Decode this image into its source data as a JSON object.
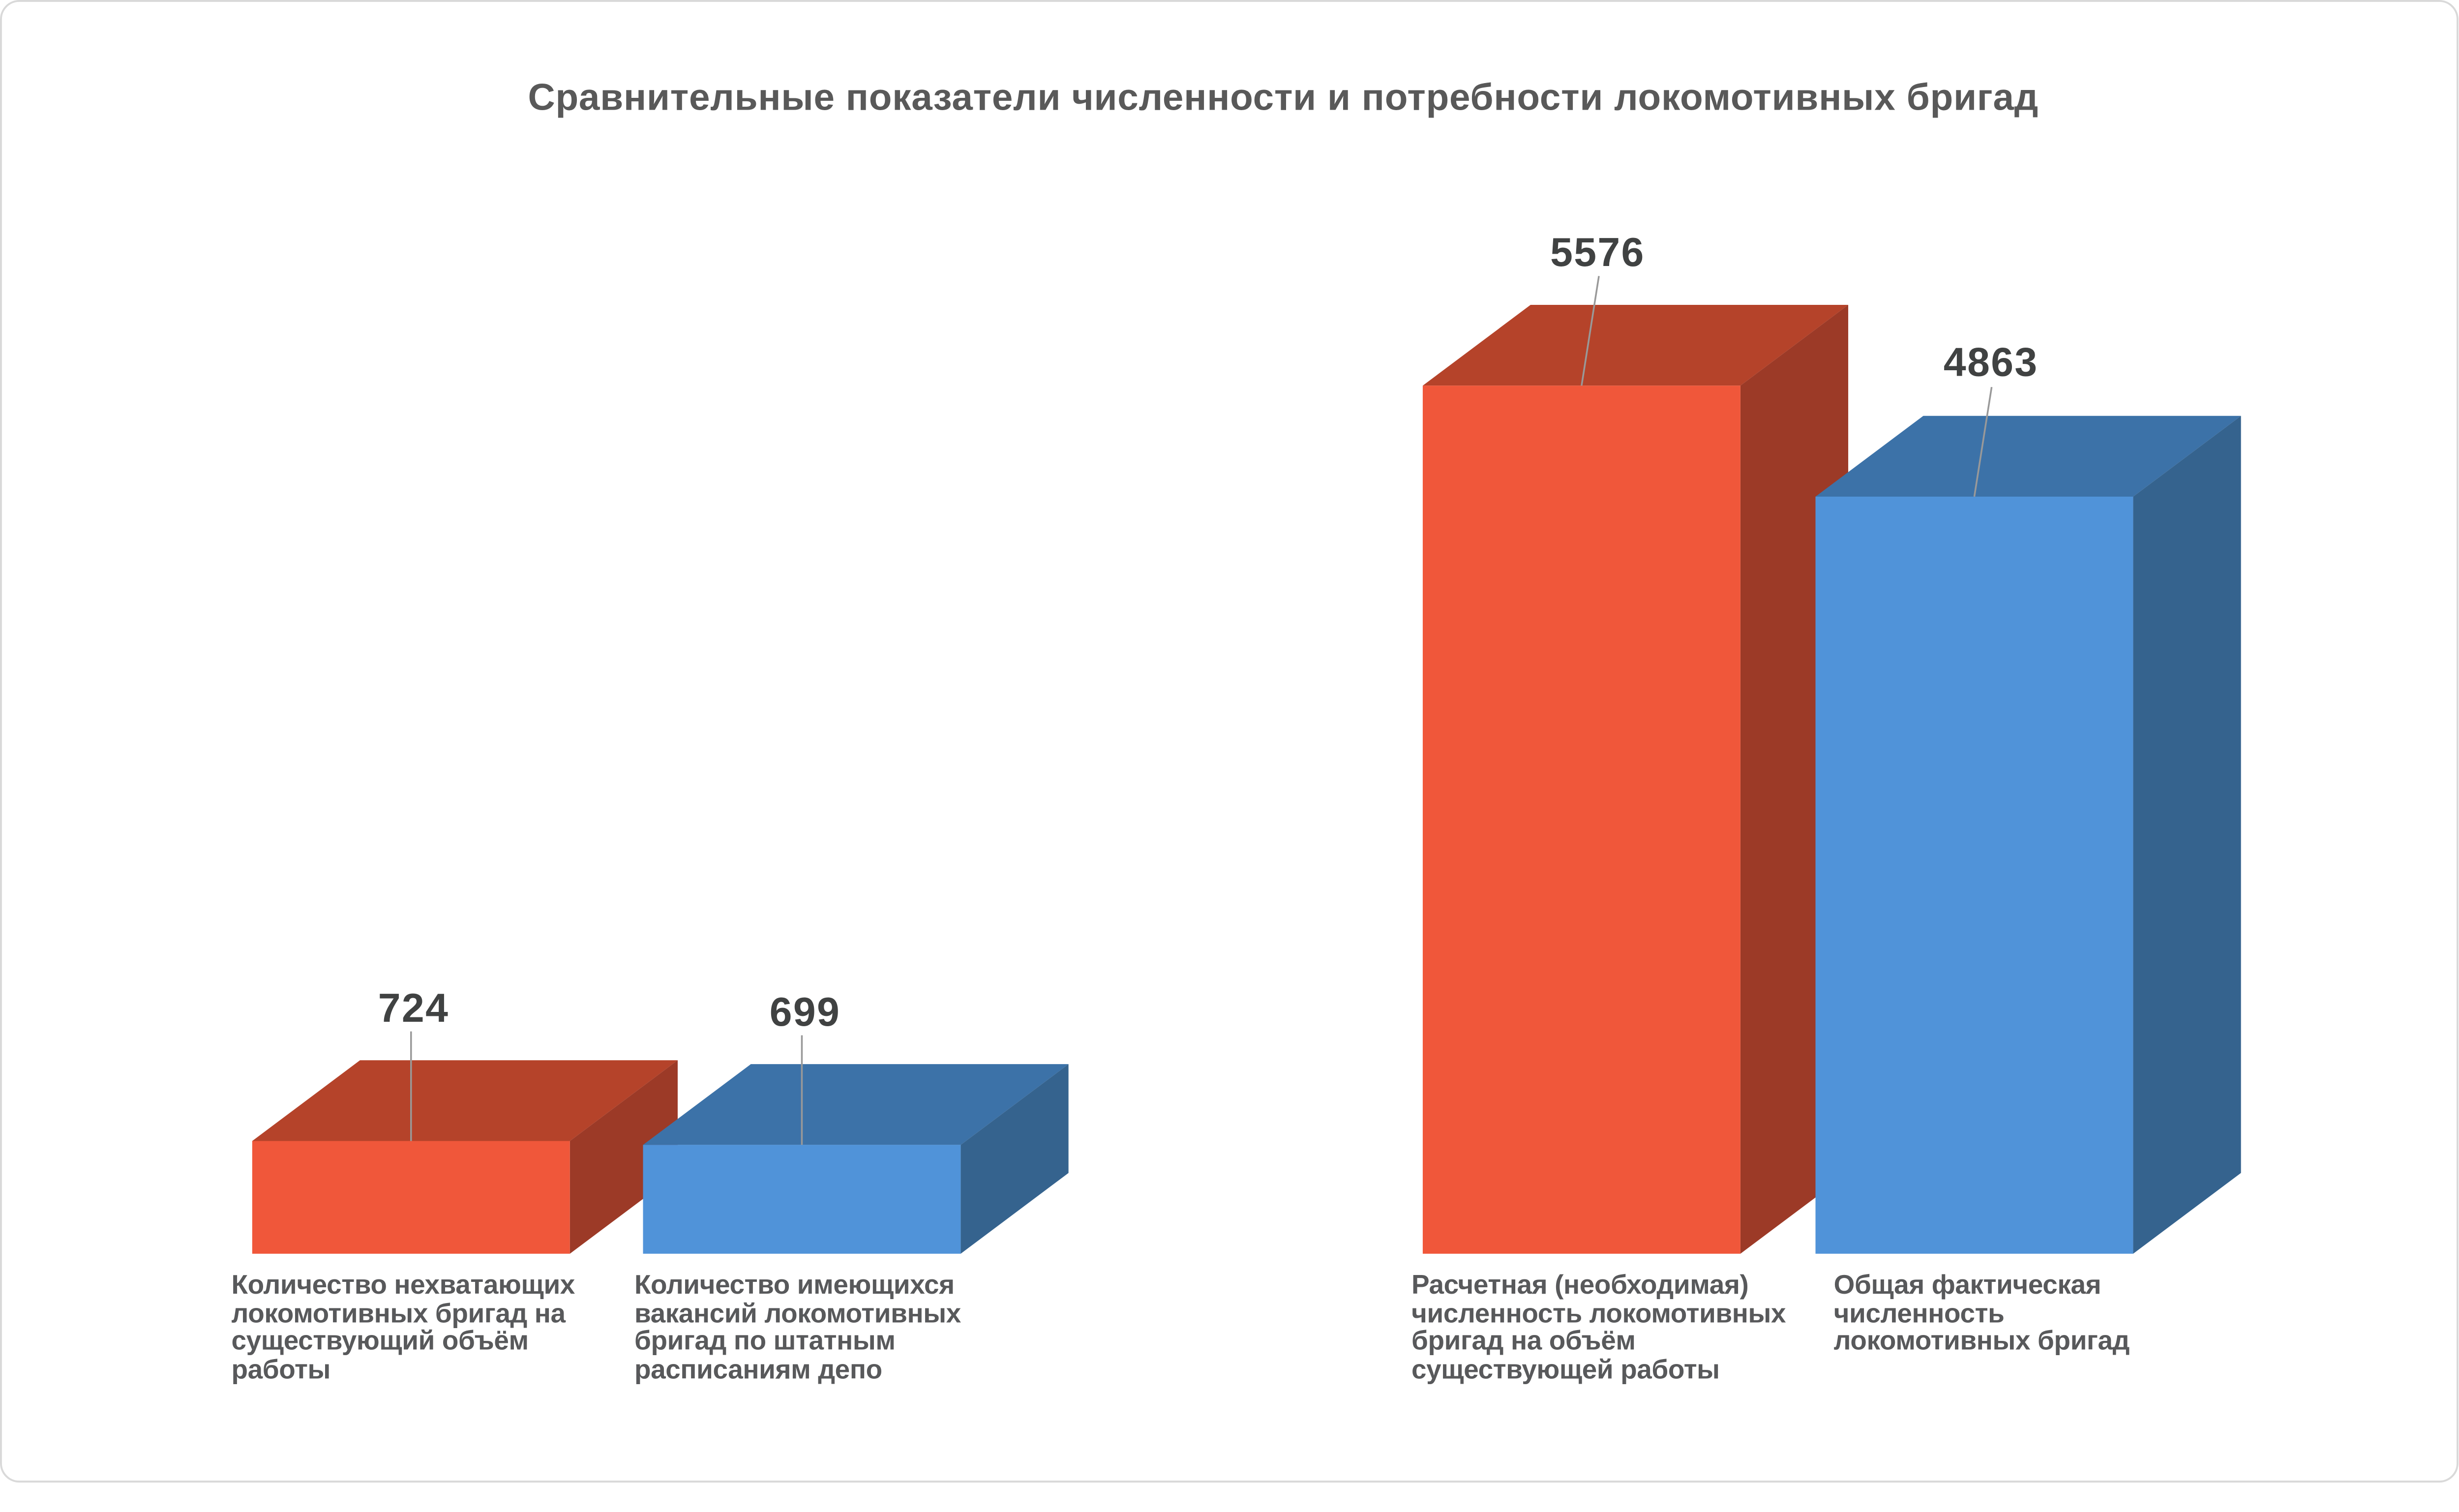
{
  "page": {
    "background": "#ffffff",
    "card_border_color": "#d9d9d9"
  },
  "chart_data": {
    "type": "bar",
    "variant": "3d-box-columns",
    "title": "Сравнительные показатели численности и потребности локомотивных бригад",
    "legend_position": "none",
    "grid": false,
    "axes_visible": false,
    "value_range": [
      0,
      5576
    ],
    "categories": [
      "Количество нехватающих локомотивных бригад на существующий объём работы",
      "Количество имеющихся вакансий локомотивных бригад по штатным расписаниям депо",
      "Расчетная (необходимая) численность локомотивных бригад на объём существующей работы",
      "Общая фактическая численность локомотивных бригад"
    ],
    "bars": [
      {
        "value": 724,
        "value_label": "724",
        "color": "red",
        "category": "Количество нехватающих локомотивных бригад на существующий объём работы",
        "category_lines": [
          "Количество нехватающих",
          "локомотивных бригад на",
          "существующий объём",
          "работы"
        ]
      },
      {
        "value": 699,
        "value_label": "699",
        "color": "blue",
        "category": "Количество имеющихся вакансий локомотивных бригад по штатным расписаниям депо",
        "category_lines": [
          "Количество имеющихся",
          "вакансий локомотивных",
          "бригад по штатным",
          "расписаниям депо"
        ]
      },
      {
        "value": 5576,
        "value_label": "5576",
        "color": "red",
        "category": "Расчетная (необходимая) численность локомотивных бригад на объём существующей работы",
        "category_lines": [
          "Расчетная (необходимая)",
          "численность локомотивных",
          "бригад на объём",
          "существующей работы"
        ]
      },
      {
        "value": 4863,
        "value_label": "4863",
        "color": "blue",
        "category": "Общая фактическая численность локомотивных бригад",
        "category_lines": [
          "Общая фактическая",
          "численность",
          "локомотивных бригад"
        ]
      }
    ],
    "palette": {
      "red": {
        "front": "#F0573A",
        "top": "#B5432A",
        "side": "#9C3A27"
      },
      "blue": {
        "front": "#5093D9",
        "top": "#3C72A8",
        "side": "#35638E"
      }
    },
    "leader_line_color": "#999999",
    "text_colors": {
      "title": "#595959",
      "value": "#404242",
      "category": "#58595B"
    }
  }
}
